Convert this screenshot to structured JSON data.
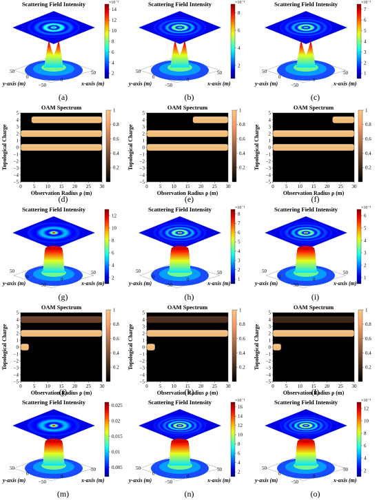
{
  "figure": {
    "rows": [
      {
        "kind": "field",
        "panels": [
          {
            "label": "(a)",
            "title": "Scattering Field Intensity",
            "exponent": "×10⁻³",
            "colorbar_ticks": [
              "14",
              "12",
              "10",
              "8",
              "6",
              "4",
              "2"
            ],
            "cmax": 15,
            "cmin": 1,
            "rings": 3,
            "peak": "double"
          },
          {
            "label": "(b)",
            "title": "Scattering Field Intensity",
            "exponent": "×10⁻³",
            "colorbar_ticks": [
              "8",
              "6",
              "4",
              "2"
            ],
            "cmax": 9,
            "cmin": 0.5,
            "rings": 4,
            "peak": "double"
          },
          {
            "label": "(c)",
            "title": "Scattering Field Intensity",
            "exponent": "×10⁻³",
            "colorbar_ticks": [
              "7",
              "6",
              "5",
              "4",
              "3",
              "2",
              "1"
            ],
            "cmax": 7.5,
            "cmin": 0.5,
            "rings": 4,
            "peak": "double"
          }
        ]
      },
      {
        "kind": "oam",
        "panels": [
          {
            "label": "(d)",
            "title": "OAM Spectrum",
            "colorbar_ticks": [
              "1",
              "0.8",
              "0.6",
              "0.4",
              "0.2"
            ],
            "bands": [
              {
                "charge": 4,
                "from": 4,
                "to": 30
              },
              {
                "charge": 2,
                "from": 0,
                "to": 30
              },
              {
                "charge": 0,
                "from": 0,
                "to": 30
              }
            ]
          },
          {
            "label": "(e)",
            "title": "OAM Spectrum",
            "colorbar_ticks": [
              "1",
              "0.8",
              "0.6",
              "0.4",
              "0.2"
            ],
            "bands": [
              {
                "charge": 4,
                "from": 17,
                "to": 30
              },
              {
                "charge": 2,
                "from": 0,
                "to": 30
              },
              {
                "charge": 0,
                "from": 0,
                "to": 30
              }
            ]
          },
          {
            "label": "(f)",
            "title": "OAM Spectrum",
            "colorbar_ticks": [
              "1",
              "0.8",
              "0.6",
              "0.4",
              "0.2"
            ],
            "bands": [
              {
                "charge": 4,
                "from": 22,
                "to": 30
              },
              {
                "charge": 2,
                "from": 0,
                "to": 30
              },
              {
                "charge": 0,
                "from": 0,
                "to": 30
              }
            ]
          }
        ]
      },
      {
        "kind": "field",
        "panels": [
          {
            "label": "(g)",
            "title": "Scattering Field Intensity",
            "exponent": "",
            "colorbar_ticks": [
              "12",
              "10",
              "8",
              "6",
              "4",
              "2"
            ],
            "cmax": 13,
            "cmin": 1,
            "rings": 2,
            "peak": "crater"
          },
          {
            "label": "(h)",
            "title": "Scattering Field Intensity",
            "exponent": "×10⁻³",
            "colorbar_ticks": [
              "8",
              "7",
              "6",
              "5",
              "4",
              "3",
              "2",
              "1"
            ],
            "cmax": 8.5,
            "cmin": 0.5,
            "rings": 4,
            "peak": "crater"
          },
          {
            "label": "(i)",
            "title": "Scattering Field Intensity",
            "exponent": "×10⁻³",
            "colorbar_ticks": [
              "6",
              "5",
              "4",
              "3",
              "2",
              "1"
            ],
            "cmax": 6.5,
            "cmin": 0.5,
            "rings": 4,
            "peak": "crater"
          }
        ]
      },
      {
        "kind": "oam",
        "panels": [
          {
            "label": "(j)",
            "title": "OAM Spectrum",
            "colorbar_ticks": [
              "1",
              "0.8",
              "0.6",
              "0.4",
              "0.2"
            ],
            "bands": [
              {
                "charge": 4,
                "from": 0,
                "to": 30,
                "level": 0.35
              },
              {
                "charge": 2,
                "from": 0,
                "to": 30
              },
              {
                "charge": 0,
                "from": 0,
                "to": 3
              }
            ]
          },
          {
            "label": "(k)",
            "title": "OAM Spectrum",
            "colorbar_ticks": [
              "1",
              "0.8",
              "0.6",
              "0.4",
              "0.2"
            ],
            "bands": [
              {
                "charge": 4,
                "from": 0,
                "to": 30,
                "level": 0.25
              },
              {
                "charge": 2,
                "from": 0,
                "to": 30
              },
              {
                "charge": 0,
                "from": 0,
                "to": 3
              }
            ]
          },
          {
            "label": "(l)",
            "title": "OAM Spectrum",
            "colorbar_ticks": [
              "1",
              "0.8",
              "0.6",
              "0.4",
              "0.2"
            ],
            "bands": [
              {
                "charge": 4,
                "from": 0,
                "to": 30,
                "level": 0.2
              },
              {
                "charge": 2,
                "from": 0,
                "to": 30
              },
              {
                "charge": 0,
                "from": 0,
                "to": 3
              }
            ]
          }
        ]
      },
      {
        "kind": "field",
        "panels": [
          {
            "label": "(m)",
            "title": "Scattering Field Intensity",
            "exponent": "",
            "colorbar_ticks": [
              "0.025",
              "0.02",
              "0.015",
              "0.01",
              "0.005"
            ],
            "cmax": 0.026,
            "cmin": 0.002,
            "rings": 2,
            "peak": "crater"
          },
          {
            "label": "(n)",
            "title": "Scattering Field Intensity",
            "exponent": "×10⁻³",
            "colorbar_ticks": [
              "16",
              "14",
              "12",
              "10",
              "8",
              "6",
              "4",
              "2"
            ],
            "cmax": 17,
            "cmin": 1,
            "rings": 5,
            "peak": "crater"
          },
          {
            "label": "(o)",
            "title": "Scattering Field Intensity",
            "exponent": "×10⁻³",
            "colorbar_ticks": [
              "12",
              "10",
              "8",
              "6",
              "4",
              "2"
            ],
            "cmax": 13,
            "cmin": 1,
            "rings": 5,
            "peak": "crater"
          }
        ]
      }
    ],
    "field_axes": {
      "x_label": "x-axis (m)",
      "y_label": "y-axis (m)",
      "x_ticks": [
        "−50",
        "0",
        "50"
      ],
      "y_ticks": [
        "50",
        "0",
        "−50"
      ]
    },
    "oam_axes": {
      "x_label": "Observation Radius ρ (m)",
      "y_label": "Topological Charge",
      "x_ticks": [
        "0",
        "5",
        "10",
        "15",
        "20",
        "25",
        "30"
      ],
      "y_ticks": [
        "5",
        "4",
        "3",
        "2",
        "1",
        "0",
        "−1",
        "−2",
        "−3",
        "−4",
        "−5"
      ]
    }
  },
  "chart_data": [
    {
      "type": "heatmap",
      "panel": "(a)",
      "title": "Scattering Field Intensity",
      "xlabel": "x-axis (m)",
      "ylabel": "y-axis (m)",
      "x_range": [
        -50,
        50
      ],
      "y_range": [
        -50,
        50
      ],
      "colorbar_range": [
        1,
        15
      ],
      "colorbar_exponent": "×10⁻³",
      "colorbar_ticks": [
        14,
        12,
        10,
        8,
        6,
        4,
        2
      ]
    },
    {
      "type": "heatmap",
      "panel": "(b)",
      "title": "Scattering Field Intensity",
      "xlabel": "x-axis (m)",
      "ylabel": "y-axis (m)",
      "x_range": [
        -50,
        50
      ],
      "y_range": [
        -50,
        50
      ],
      "colorbar_range": [
        0.5,
        9
      ],
      "colorbar_exponent": "×10⁻³",
      "colorbar_ticks": [
        8,
        6,
        4,
        2
      ]
    },
    {
      "type": "heatmap",
      "panel": "(c)",
      "title": "Scattering Field Intensity",
      "xlabel": "x-axis (m)",
      "ylabel": "y-axis (m)",
      "x_range": [
        -50,
        50
      ],
      "y_range": [
        -50,
        50
      ],
      "colorbar_range": [
        0.5,
        7.5
      ],
      "colorbar_exponent": "×10⁻³",
      "colorbar_ticks": [
        7,
        6,
        5,
        4,
        3,
        2,
        1
      ]
    },
    {
      "type": "heatmap",
      "panel": "(d)",
      "title": "OAM Spectrum",
      "xlabel": "Observation Radius ρ (m)",
      "ylabel": "Topological Charge",
      "x_range": [
        0,
        30
      ],
      "y_range": [
        -5,
        5
      ],
      "colorbar_range": [
        0,
        1
      ],
      "bands": [
        {
          "charge": 4,
          "from": 4,
          "to": 30,
          "value": 1
        },
        {
          "charge": 2,
          "from": 0,
          "to": 30,
          "value": 1
        },
        {
          "charge": 0,
          "from": 0,
          "to": 30,
          "value": 1
        }
      ]
    },
    {
      "type": "heatmap",
      "panel": "(e)",
      "title": "OAM Spectrum",
      "xlabel": "Observation Radius ρ (m)",
      "ylabel": "Topological Charge",
      "x_range": [
        0,
        30
      ],
      "y_range": [
        -5,
        5
      ],
      "colorbar_range": [
        0,
        1
      ],
      "bands": [
        {
          "charge": 4,
          "from": 17,
          "to": 30,
          "value": 1
        },
        {
          "charge": 2,
          "from": 0,
          "to": 30,
          "value": 1
        },
        {
          "charge": 0,
          "from": 0,
          "to": 30,
          "value": 1
        }
      ]
    },
    {
      "type": "heatmap",
      "panel": "(f)",
      "title": "OAM Spectrum",
      "xlabel": "Observation Radius ρ (m)",
      "ylabel": "Topological Charge",
      "x_range": [
        0,
        30
      ],
      "y_range": [
        -5,
        5
      ],
      "colorbar_range": [
        0,
        1
      ],
      "bands": [
        {
          "charge": 4,
          "from": 22,
          "to": 30,
          "value": 1
        },
        {
          "charge": 2,
          "from": 0,
          "to": 30,
          "value": 1
        },
        {
          "charge": 0,
          "from": 0,
          "to": 30,
          "value": 1
        }
      ]
    },
    {
      "type": "heatmap",
      "panel": "(g)",
      "title": "Scattering Field Intensity",
      "xlabel": "x-axis (m)",
      "ylabel": "y-axis (m)",
      "x_range": [
        -50,
        50
      ],
      "y_range": [
        -50,
        50
      ],
      "colorbar_range": [
        1,
        13
      ],
      "colorbar_ticks": [
        12,
        10,
        8,
        6,
        4,
        2
      ]
    },
    {
      "type": "heatmap",
      "panel": "(h)",
      "title": "Scattering Field Intensity",
      "xlabel": "x-axis (m)",
      "ylabel": "y-axis (m)",
      "x_range": [
        -50,
        50
      ],
      "y_range": [
        -50,
        50
      ],
      "colorbar_range": [
        0.5,
        8.5
      ],
      "colorbar_exponent": "×10⁻³",
      "colorbar_ticks": [
        8,
        7,
        6,
        5,
        4,
        3,
        2,
        1
      ]
    },
    {
      "type": "heatmap",
      "panel": "(i)",
      "title": "Scattering Field Intensity",
      "xlabel": "x-axis (m)",
      "ylabel": "y-axis (m)",
      "x_range": [
        -50,
        50
      ],
      "y_range": [
        -50,
        50
      ],
      "colorbar_range": [
        0.5,
        6.5
      ],
      "colorbar_exponent": "×10⁻³",
      "colorbar_ticks": [
        6,
        5,
        4,
        3,
        2,
        1
      ]
    },
    {
      "type": "heatmap",
      "panel": "(j)",
      "title": "OAM Spectrum",
      "xlabel": "Observation Radius ρ (m)",
      "ylabel": "Topological Charge",
      "x_range": [
        0,
        30
      ],
      "y_range": [
        -5,
        5
      ],
      "colorbar_range": [
        0,
        1
      ],
      "bands": [
        {
          "charge": 4,
          "from": 0,
          "to": 30,
          "value": 0.35
        },
        {
          "charge": 2,
          "from": 0,
          "to": 30,
          "value": 1
        },
        {
          "charge": 0,
          "from": 0,
          "to": 3,
          "value": 1
        }
      ]
    },
    {
      "type": "heatmap",
      "panel": "(k)",
      "title": "OAM Spectrum",
      "xlabel": "Observation Radius ρ (m)",
      "ylabel": "Topological Charge",
      "x_range": [
        0,
        30
      ],
      "y_range": [
        -5,
        5
      ],
      "colorbar_range": [
        0,
        1
      ],
      "bands": [
        {
          "charge": 4,
          "from": 0,
          "to": 30,
          "value": 0.25
        },
        {
          "charge": 2,
          "from": 0,
          "to": 30,
          "value": 1
        },
        {
          "charge": 0,
          "from": 0,
          "to": 3,
          "value": 1
        }
      ]
    },
    {
      "type": "heatmap",
      "panel": "(l)",
      "title": "OAM Spectrum",
      "xlabel": "Observation Radius ρ (m)",
      "ylabel": "Topological Charge",
      "x_range": [
        0,
        30
      ],
      "y_range": [
        -5,
        5
      ],
      "colorbar_range": [
        0,
        1
      ],
      "bands": [
        {
          "charge": 4,
          "from": 0,
          "to": 30,
          "value": 0.2
        },
        {
          "charge": 2,
          "from": 0,
          "to": 30,
          "value": 1
        },
        {
          "charge": 0,
          "from": 0,
          "to": 3,
          "value": 1
        }
      ]
    },
    {
      "type": "heatmap",
      "panel": "(m)",
      "title": "Scattering Field Intensity",
      "xlabel": "x-axis (m)",
      "ylabel": "y-axis (m)",
      "x_range": [
        -50,
        50
      ],
      "y_range": [
        -50,
        50
      ],
      "colorbar_range": [
        0.002,
        0.026
      ],
      "colorbar_ticks": [
        0.025,
        0.02,
        0.015,
        0.01,
        0.005
      ]
    },
    {
      "type": "heatmap",
      "panel": "(n)",
      "title": "Scattering Field Intensity",
      "xlabel": "x-axis (m)",
      "ylabel": "y-axis (m)",
      "x_range": [
        -50,
        50
      ],
      "y_range": [
        -50,
        50
      ],
      "colorbar_range": [
        1,
        17
      ],
      "colorbar_exponent": "×10⁻³",
      "colorbar_ticks": [
        16,
        14,
        12,
        10,
        8,
        6,
        4,
        2
      ]
    },
    {
      "type": "heatmap",
      "panel": "(o)",
      "title": "Scattering Field Intensity",
      "xlabel": "x-axis (m)",
      "ylabel": "y-axis (m)",
      "x_range": [
        -50,
        50
      ],
      "y_range": [
        -50,
        50
      ],
      "colorbar_range": [
        1,
        13
      ],
      "colorbar_exponent": "×10⁻³",
      "colorbar_ticks": [
        12,
        10,
        8,
        6,
        4,
        2
      ]
    }
  ]
}
